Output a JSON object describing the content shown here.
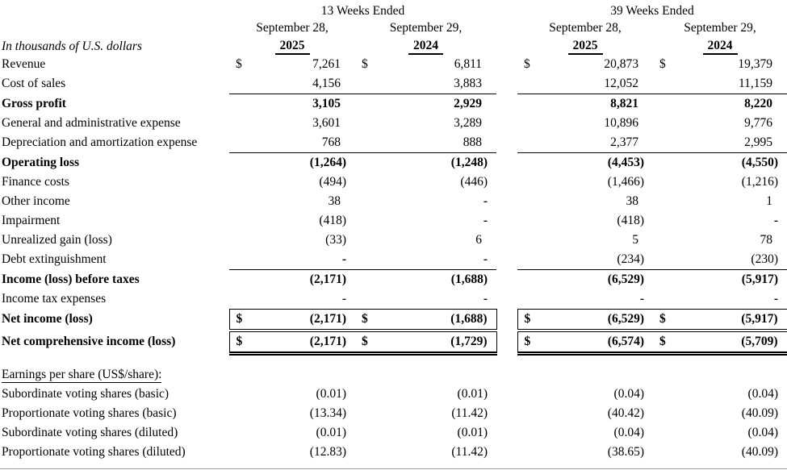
{
  "page": {
    "background": "#ffffff",
    "text_color": "#000000",
    "bottom_rule_color": "#a3a3a3"
  },
  "statement": {
    "units_label": "In thousands of U.S. dollars",
    "currency_symbol": "$",
    "period_groups": [
      {
        "label": "13 Weeks Ended"
      },
      {
        "label": "39 Weeks Ended"
      }
    ],
    "columns": [
      {
        "date_line": "September 28,",
        "year": "2025"
      },
      {
        "date_line": "September 29,",
        "year": "2024"
      },
      {
        "date_line": "September 28,",
        "year": "2025"
      },
      {
        "date_line": "September 29,",
        "year": "2024"
      }
    ],
    "rows": [
      {
        "label": "Revenue",
        "values": [
          "7,261",
          "6,811",
          "20,873",
          "19,379"
        ],
        "dollar_sign": true
      },
      {
        "label": "Cost of sales",
        "values": [
          "4,156",
          "3,883",
          "12,052",
          "11,159"
        ],
        "rule_below": true
      },
      {
        "label": "Gross profit",
        "values": [
          "3,105",
          "2,929",
          "8,821",
          "8,220"
        ],
        "bold": true
      },
      {
        "label": "General and administrative expense",
        "values": [
          "3,601",
          "3,289",
          "10,896",
          "9,776"
        ]
      },
      {
        "label": "Depreciation and amortization expense",
        "values": [
          "768",
          "888",
          "2,377",
          "2,995"
        ],
        "rule_below": true
      },
      {
        "label": "Operating loss",
        "values": [
          "(1,264)",
          "(1,248)",
          "(4,453)",
          "(4,550)"
        ],
        "bold": true
      },
      {
        "label": "Finance costs",
        "values": [
          "(494)",
          "(446)",
          "(1,466)",
          "(1,216)"
        ]
      },
      {
        "label": "Other income",
        "values": [
          "38",
          "-",
          "38",
          "1"
        ]
      },
      {
        "label": "Impairment",
        "values": [
          "(418)",
          "-",
          "(418)",
          "-"
        ]
      },
      {
        "label": "Unrealized gain (loss)",
        "values": [
          "(33)",
          "6",
          "5",
          "78"
        ]
      },
      {
        "label": "Debt extinguishment",
        "values": [
          "-",
          "-",
          "(234)",
          "(230)"
        ],
        "rule_below": true
      },
      {
        "label": "Income (loss) before taxes",
        "values": [
          "(2,171)",
          "(1,688)",
          "(6,529)",
          "(5,917)"
        ],
        "bold": true
      },
      {
        "label": "Income tax expenses",
        "values": [
          "-",
          "-",
          "-",
          "-"
        ],
        "rule_below": true
      },
      {
        "label": "Net income (loss)",
        "values": [
          "(2,171)",
          "(1,688)",
          "(6,529)",
          "(5,917)"
        ],
        "bold": true,
        "dollar_sign": true,
        "boxed": true,
        "double_rule_below": true
      },
      {
        "label": "Net comprehensive income (loss)",
        "values": [
          "(2,171)",
          "(1,729)",
          "(6,574)",
          "(5,709)"
        ],
        "bold": true,
        "dollar_sign": true,
        "boxed": true,
        "double_rule_below": true,
        "heavy": true
      }
    ]
  },
  "eps": {
    "heading": "Earnings per share (US$/share):",
    "rows": [
      {
        "label": "Subordinate voting shares (basic)",
        "values": [
          "(0.01)",
          "(0.01)",
          "(0.04)",
          "(0.04)"
        ]
      },
      {
        "label": "Proportionate voting shares (basic)",
        "values": [
          "(13.34)",
          "(11.42)",
          "(40.42)",
          "(40.09)"
        ]
      },
      {
        "label": "Subordinate voting shares (diluted)",
        "values": [
          "(0.01)",
          "(0.01)",
          "(0.04)",
          "(0.04)"
        ]
      },
      {
        "label": "Proportionate voting shares (diluted)",
        "values": [
          "(12.83)",
          "(11.42)",
          "(38.65)",
          "(40.09)"
        ]
      }
    ]
  }
}
